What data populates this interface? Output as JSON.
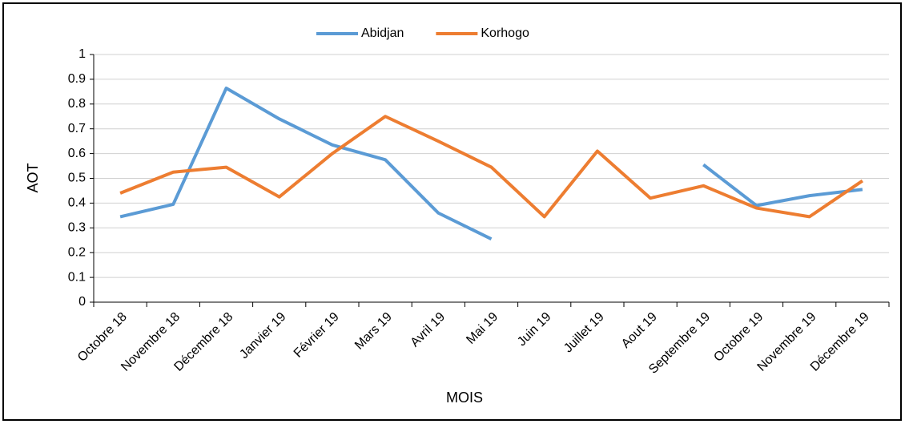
{
  "chart_data": {
    "type": "line",
    "x_label": "MOIS",
    "y_label": "AOT",
    "categories": [
      "Octobre 18",
      "Novembre 18",
      "Décembre 18",
      "Janvier 19",
      "Février 19",
      "Mars 19",
      "Avril 19",
      "Mai 19",
      "Juin 19",
      "Juillet 19",
      "Aout 19",
      "Septembre 19",
      "Octobre 19",
      "Novembre 19",
      "Décembre 19"
    ],
    "series": [
      {
        "name": "Abidjan",
        "color": "#5b9bd5",
        "values": [
          0.345,
          0.395,
          0.864,
          0.74,
          0.635,
          0.575,
          0.36,
          0.255,
          null,
          null,
          null,
          0.555,
          0.39,
          0.43,
          0.455
        ]
      },
      {
        "name": "Korhogo",
        "color": "#ed7d31",
        "values": [
          0.44,
          0.525,
          0.545,
          0.425,
          0.6,
          0.75,
          0.65,
          0.545,
          0.345,
          0.61,
          0.42,
          0.47,
          0.38,
          0.345,
          0.49
        ]
      }
    ],
    "ylim": [
      0,
      1
    ],
    "yticks": [
      0,
      0.1,
      0.2,
      0.3,
      0.4,
      0.5,
      0.6,
      0.7,
      0.8,
      0.9,
      1
    ],
    "grid": true,
    "legend": "top"
  }
}
